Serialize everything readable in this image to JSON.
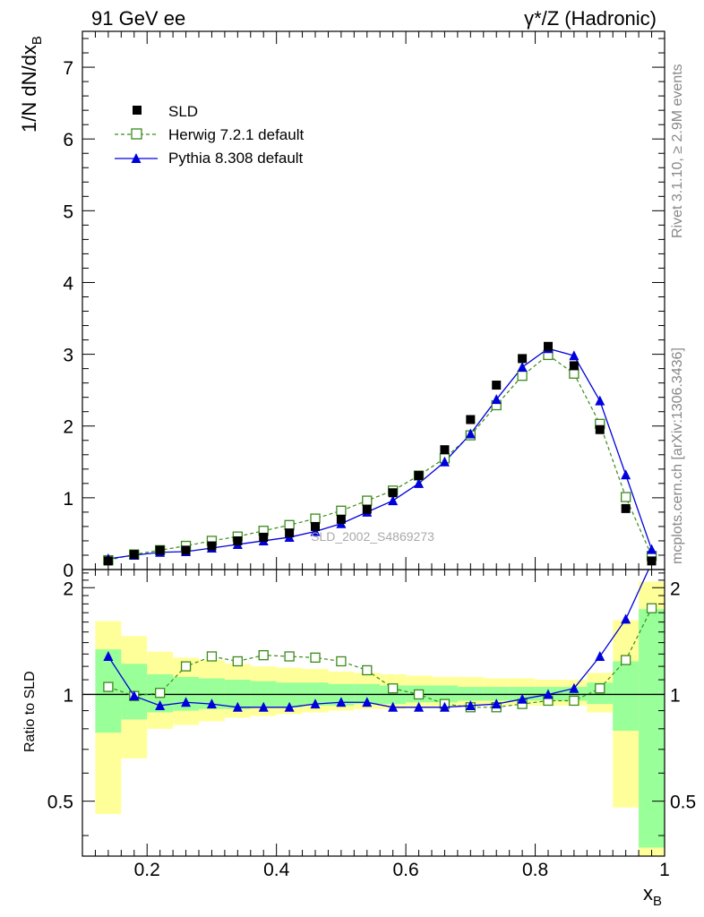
{
  "header": {
    "left": "91 GeV ee",
    "right": "γ*/Z (Hadronic)"
  },
  "side_text": {
    "rivet": "Rivet 3.1.10, ≥ 2.9M events",
    "mcplots": "mcplots.cern.ch [arXiv:1306.3436]"
  },
  "watermark": "SLD_2002_S4869273",
  "colors": {
    "data": "#000000",
    "herwig": "#3a8a1a",
    "pythia": "#0000dd",
    "band_inner": "#99ff99",
    "band_outer": "#ffff99"
  },
  "chart_data": [
    {
      "type": "scatter",
      "panel": "main",
      "ylabel_main": "1/N dN/dx",
      "ylabel_sub": "B",
      "ylim": [
        0,
        7.5
      ],
      "xlim": [
        0.1,
        1.0
      ],
      "yticks": [
        "0",
        "1",
        "2",
        "3",
        "4",
        "5",
        "6",
        "7"
      ],
      "legend_position": "top-left",
      "x": [
        0.14,
        0.18,
        0.22,
        0.26,
        0.3,
        0.34,
        0.38,
        0.42,
        0.46,
        0.5,
        0.54,
        0.58,
        0.62,
        0.66,
        0.7,
        0.74,
        0.78,
        0.82,
        0.86,
        0.9,
        0.94,
        0.98
      ],
      "series": [
        {
          "name": "SLD",
          "marker": "filled-square",
          "values": [
            0.12,
            0.21,
            0.27,
            0.27,
            0.33,
            0.4,
            0.45,
            0.51,
            0.6,
            0.7,
            0.84,
            1.07,
            1.31,
            1.67,
            2.09,
            2.57,
            2.94,
            3.11,
            2.84,
            1.95,
            0.85,
            0.12
          ]
        },
        {
          "name": "Herwig 7.2.1 default",
          "marker": "open-square",
          "dashed": true,
          "values": [
            0.13,
            0.21,
            0.27,
            0.33,
            0.4,
            0.46,
            0.54,
            0.62,
            0.71,
            0.82,
            0.96,
            1.1,
            1.31,
            1.55,
            1.87,
            2.29,
            2.7,
            2.99,
            2.73,
            2.03,
            1.01,
            0.19
          ]
        },
        {
          "name": "Pythia 8.308 default",
          "marker": "filled-triangle",
          "values": [
            0.15,
            0.2,
            0.24,
            0.25,
            0.3,
            0.35,
            0.4,
            0.45,
            0.53,
            0.64,
            0.8,
            0.96,
            1.2,
            1.5,
            1.89,
            2.37,
            2.82,
            3.08,
            2.98,
            2.35,
            1.32,
            0.28
          ]
        }
      ]
    },
    {
      "type": "line",
      "panel": "ratio",
      "ylabel": "Ratio to SLD",
      "xlabel_main": "x",
      "xlabel_sub": "B",
      "ylim": [
        0.35,
        2.25
      ],
      "xlim": [
        0.1,
        1.0
      ],
      "yticks": [
        "0.5",
        "1",
        "2"
      ],
      "xticks": [
        "0.2",
        "0.4",
        "0.6",
        "0.8",
        "1"
      ],
      "reference_line": 1,
      "x": [
        0.14,
        0.18,
        0.22,
        0.26,
        0.3,
        0.34,
        0.38,
        0.42,
        0.46,
        0.5,
        0.54,
        0.58,
        0.62,
        0.66,
        0.7,
        0.74,
        0.78,
        0.82,
        0.86,
        0.9,
        0.94,
        0.98
      ],
      "bin_edges": [
        0.12,
        0.16,
        0.2,
        0.24,
        0.28,
        0.32,
        0.36,
        0.4,
        0.44,
        0.48,
        0.52,
        0.56,
        0.6,
        0.64,
        0.68,
        0.72,
        0.76,
        0.8,
        0.84,
        0.88,
        0.92,
        0.96,
        1.0
      ],
      "band_inner": [
        [
          0.78,
          1.34
        ],
        [
          0.85,
          1.22
        ],
        [
          0.89,
          1.14
        ],
        [
          0.9,
          1.12
        ],
        [
          0.91,
          1.11
        ],
        [
          0.91,
          1.1
        ],
        [
          0.92,
          1.09
        ],
        [
          0.92,
          1.08
        ],
        [
          0.93,
          1.08
        ],
        [
          0.93,
          1.07
        ],
        [
          0.94,
          1.07
        ],
        [
          0.94,
          1.06
        ],
        [
          0.95,
          1.06
        ],
        [
          0.95,
          1.06
        ],
        [
          0.96,
          1.05
        ],
        [
          0.96,
          1.05
        ],
        [
          0.96,
          1.05
        ],
        [
          0.96,
          1.05
        ],
        [
          0.96,
          1.05
        ],
        [
          0.94,
          1.08
        ],
        [
          0.79,
          1.24
        ],
        [
          0.37,
          1.74
        ]
      ],
      "band_outer": [
        [
          0.46,
          1.61
        ],
        [
          0.66,
          1.46
        ],
        [
          0.8,
          1.32
        ],
        [
          0.82,
          1.27
        ],
        [
          0.84,
          1.25
        ],
        [
          0.86,
          1.22
        ],
        [
          0.87,
          1.2
        ],
        [
          0.88,
          1.19
        ],
        [
          0.89,
          1.18
        ],
        [
          0.9,
          1.16
        ],
        [
          0.91,
          1.15
        ],
        [
          0.91,
          1.14
        ],
        [
          0.92,
          1.13
        ],
        [
          0.92,
          1.12
        ],
        [
          0.93,
          1.12
        ],
        [
          0.93,
          1.11
        ],
        [
          0.93,
          1.11
        ],
        [
          0.93,
          1.1
        ],
        [
          0.93,
          1.1
        ],
        [
          0.89,
          1.15
        ],
        [
          0.48,
          1.62
        ],
        [
          0.35,
          2.08
        ]
      ],
      "series": [
        {
          "name": "Herwig 7.2.1 default",
          "dashed": true,
          "values": [
            1.05,
            0.99,
            1.01,
            1.2,
            1.28,
            1.24,
            1.29,
            1.28,
            1.27,
            1.24,
            1.17,
            1.04,
            1.0,
            0.94,
            0.92,
            0.92,
            0.94,
            0.96,
            0.96,
            1.04,
            1.25,
            1.75
          ]
        },
        {
          "name": "Pythia 8.308 default",
          "values": [
            1.28,
            0.99,
            0.93,
            0.95,
            0.94,
            0.92,
            0.92,
            0.92,
            0.94,
            0.95,
            0.95,
            0.92,
            0.92,
            0.92,
            0.93,
            0.94,
            0.97,
            1.0,
            1.04,
            1.28,
            1.63,
            2.35
          ]
        }
      ]
    }
  ]
}
